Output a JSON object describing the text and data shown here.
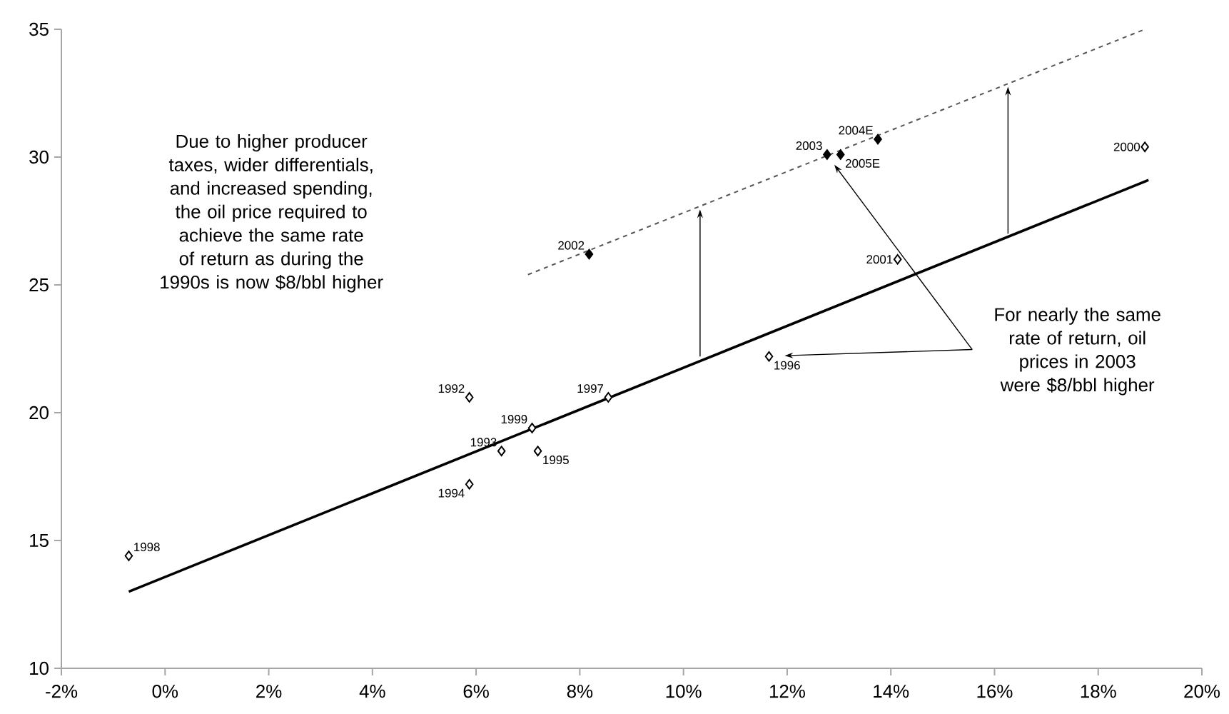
{
  "chart_data": {
    "type": "scatter",
    "xlim": [
      -2,
      20
    ],
    "ylim": [
      10,
      35
    ],
    "xticks": [
      {
        "value": -2,
        "label": "-2%"
      },
      {
        "value": 0,
        "label": "0%"
      },
      {
        "value": 2,
        "label": "2%"
      },
      {
        "value": 4,
        "label": "4%"
      },
      {
        "value": 6,
        "label": "6%"
      },
      {
        "value": 8,
        "label": "8%"
      },
      {
        "value": 10,
        "label": "10%"
      },
      {
        "value": 12,
        "label": "12%"
      },
      {
        "value": 14,
        "label": "14%"
      },
      {
        "value": 16,
        "label": "16%"
      },
      {
        "value": 18,
        "label": "18%"
      },
      {
        "value": 20,
        "label": "20%"
      }
    ],
    "yticks": [
      10,
      15,
      20,
      25,
      30,
      35
    ],
    "grid": false,
    "legend": false,
    "series": [
      {
        "type": "line",
        "color": "#000000",
        "line_style": "solid",
        "marker": "none",
        "x": [
          -0.7,
          18.97
        ],
        "values": [
          13.0,
          29.1
        ]
      },
      {
        "type": "line",
        "color": "#555555",
        "line_style": "dashed",
        "marker": "none",
        "x": [
          7.0,
          18.9
        ],
        "values": [
          25.4,
          35.0
        ]
      },
      {
        "color": "#000000",
        "marker": "diamond",
        "x": [
          5.87,
          6.49,
          5.87,
          7.19,
          11.65,
          8.55,
          -0.7,
          7.08,
          18.9,
          14.13
        ],
        "values": [
          20.6,
          18.5,
          17.2,
          18.5,
          22.2,
          20.6,
          14.4,
          19.4,
          30.4,
          26.0
        ]
      },
      {
        "color": "#000000",
        "marker": "diamond",
        "x": [
          8.18,
          12.77,
          13.75,
          13.03
        ],
        "values": [
          26.2,
          30.1,
          30.7,
          30.1
        ]
      }
    ],
    "annotations": [
      "Due to higher producer taxes, wider differentials, and increased spending, the oil price required to achieve the same rate of return as during the 1990s is now $8/bbl higher",
      "For nearly the same rate of return, oil prices in 2003 were $8/bbl higher",
      {
        "text": "1992",
        "x": 5.87,
        "y": 20.6
      },
      {
        "text": "1993",
        "x": 6.49,
        "y": 18.5
      },
      {
        "text": "1994",
        "x": 5.87,
        "y": 17.2
      },
      {
        "text": "1995",
        "x": 7.19,
        "y": 18.5
      },
      {
        "text": "1996",
        "x": 11.65,
        "y": 22.2
      },
      {
        "text": "1997",
        "x": 8.55,
        "y": 20.6
      },
      {
        "text": "1998",
        "x": -0.7,
        "y": 14.4
      },
      {
        "text": "1999",
        "x": 7.08,
        "y": 19.4
      },
      {
        "text": "2000",
        "x": 18.9,
        "y": 30.4
      },
      {
        "text": "2001",
        "x": 14.13,
        "y": 26.0
      },
      {
        "text": "2002",
        "x": 8.18,
        "y": 26.2
      },
      {
        "text": "2003",
        "x": 12.77,
        "y": 30.1
      },
      {
        "text": "2004E",
        "x": 13.75,
        "y": 30.7
      },
      {
        "text": "2005E",
        "x": 13.03,
        "y": 30.1
      }
    ]
  }
}
